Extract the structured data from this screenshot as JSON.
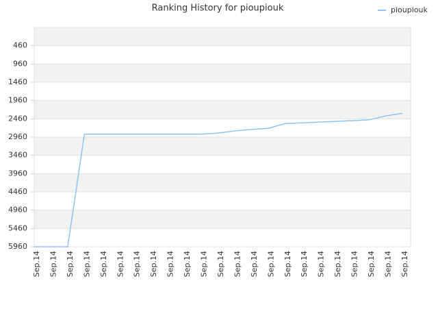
{
  "chart_data": {
    "type": "line",
    "title": "Ranking History for pioupiouk",
    "categories": [
      "Sep.14",
      "Sep.14",
      "Sep.14",
      "Sep.14",
      "Sep.14",
      "Sep.14",
      "Sep.14",
      "Sep.14",
      "Sep.14",
      "Sep.14",
      "Sep.14",
      "Sep.14",
      "Sep.14",
      "Sep.14",
      "Sep.14",
      "Sep.14",
      "Sep.14",
      "Sep.14",
      "Sep.14",
      "Sep.14",
      "Sep.14",
      "Sep.14",
      "Sep.14"
    ],
    "series": [
      {
        "name": "pioupiouk",
        "color": "#8ec2f2",
        "values": [
          5960,
          5960,
          5960,
          2880,
          2880,
          2880,
          2880,
          2880,
          2880,
          2880,
          2880,
          2850,
          2790,
          2750,
          2720,
          2590,
          2570,
          2550,
          2530,
          2510,
          2490,
          2380,
          2310
        ]
      }
    ],
    "ylim": [
      5960,
      -40
    ],
    "yticks": [
      460,
      960,
      1460,
      1960,
      2460,
      2960,
      3460,
      3960,
      4460,
      4960,
      5460,
      5960
    ],
    "grid": true,
    "legend": "top-right"
  }
}
